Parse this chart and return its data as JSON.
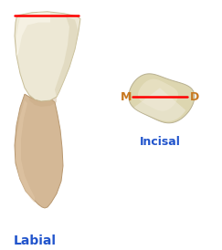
{
  "bg_color": "#ffffff",
  "fig_w": 2.43,
  "fig_h": 2.74,
  "dpi": 100,
  "labial_label": "Labial",
  "labial_label_color": "#2255cc",
  "labial_label_fontsize": 10,
  "incisal_label": "Incisal",
  "incisal_label_color": "#2255cc",
  "incisal_label_fontsize": 9,
  "M_label": "M",
  "D_label": "D",
  "MD_color": "#c87820",
  "MD_fontsize": 9,
  "red_color": "#ff0000",
  "red_lw": 1.8
}
